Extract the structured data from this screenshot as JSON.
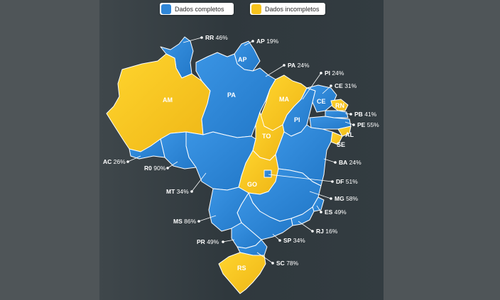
{
  "legend": {
    "complete": {
      "label": "Dados completos",
      "color": "#2f86d8"
    },
    "incomplete": {
      "label": "Dados incompletos",
      "color": "#f7c31d"
    }
  },
  "states": {
    "RR": {
      "abbr": "RR",
      "value": "46%",
      "status": "complete"
    },
    "AP": {
      "abbr": "AP",
      "value": "19%",
      "status": "complete"
    },
    "AM": {
      "abbr": "AM",
      "status": "incomplete"
    },
    "PA": {
      "abbr": "PA",
      "value": "24%",
      "status": "complete"
    },
    "MA": {
      "abbr": "MA",
      "status": "incomplete"
    },
    "PI": {
      "abbr": "PI",
      "value": "24%",
      "status": "complete"
    },
    "CE": {
      "abbr": "CE",
      "value": "31%",
      "status": "complete"
    },
    "RN": {
      "abbr": "RN",
      "status": "incomplete"
    },
    "PB": {
      "abbr": "PB",
      "value": "41%",
      "status": "complete"
    },
    "PE": {
      "abbr": "PE",
      "value": "55%",
      "status": "complete"
    },
    "AL": {
      "abbr": "AL",
      "status": "incomplete"
    },
    "SE": {
      "abbr": "SE",
      "status": "incomplete"
    },
    "BA": {
      "abbr": "BA",
      "value": "24%",
      "status": "complete"
    },
    "TO": {
      "abbr": "TO",
      "status": "incomplete"
    },
    "DF": {
      "abbr": "DF",
      "value": "51%",
      "status": "complete"
    },
    "GO": {
      "abbr": "GO",
      "status": "incomplete"
    },
    "MG": {
      "abbr": "MG",
      "value": "58%",
      "status": "complete"
    },
    "ES": {
      "abbr": "ES",
      "value": "49%",
      "status": "complete"
    },
    "RJ": {
      "abbr": "RJ",
      "value": "16%",
      "status": "complete"
    },
    "SP": {
      "abbr": "SP",
      "value": "34%",
      "status": "complete"
    },
    "PR": {
      "abbr": "PR",
      "value": "49%",
      "status": "complete"
    },
    "SC": {
      "abbr": "SC",
      "value": "78%",
      "status": "complete"
    },
    "RS": {
      "abbr": "RS",
      "status": "incomplete"
    },
    "MS": {
      "abbr": "MS",
      "value": "86%",
      "status": "complete"
    },
    "MT": {
      "abbr": "MT",
      "value": "34%",
      "status": "complete"
    },
    "RO": {
      "abbr": "R0",
      "value": "90%",
      "status": "complete"
    },
    "AC": {
      "abbr": "AC",
      "value": "26%",
      "status": "complete"
    }
  }
}
